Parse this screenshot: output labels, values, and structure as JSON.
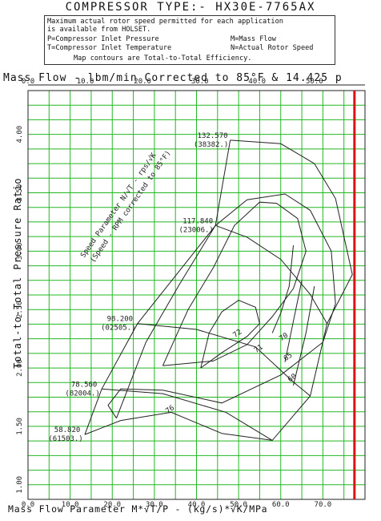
{
  "header": {
    "title": "COMPRESSOR TYPE:- HX30E-7765AX"
  },
  "info": {
    "line1": "Maximum actual rotor speed permitted for each application",
    "line2": "is available from HOLSET.",
    "p_def": "P=Compressor Inlet Pressure",
    "m_def": "M=Mass Flow",
    "t_def": "T=Compressor Inlet Temperature",
    "n_def": "N=Actual Rotor Speed",
    "line5": "Map contours are Total-to-Total Efficiency."
  },
  "chart_data": {
    "type": "line",
    "top_axis": {
      "label": "Mass Flow - lbm/min Corrected to 85°F & 14.425 p",
      "ticks": [
        "0.0",
        "10.0",
        "20.0",
        "30.0",
        "40.0",
        "50.0"
      ],
      "tick_values": [
        0,
        10,
        20,
        30,
        40,
        50
      ]
    },
    "xlabel": "Mass Flow Parameter M*√T/P - (kg/s)*√K/MPa",
    "ylabel": "Total-to-Total Pressure Ratio",
    "xlim": [
      0,
      80
    ],
    "ylim": [
      0.875,
      4.375
    ],
    "x_ticks": [
      "0.0",
      "10.0",
      "20.0",
      "30.0",
      "40.0",
      "50.0",
      "60.0",
      "70.0"
    ],
    "y_ticks": [
      "1.00",
      "1.50",
      "2.00",
      "2.50",
      "3.00",
      "3.50",
      "4.00"
    ],
    "grid": true,
    "max_flow_line_x": 77.5,
    "speed_parameter_label": {
      "line1": "Speed Parameter N/√T - rps/√K",
      "line2": "(Speed - RPM corrected to 85°F)"
    },
    "speed_lines": [
      {
        "parameter": "58.820",
        "rpm": "(61503.)",
        "points": [
          [
            13.5,
            1.43
          ],
          [
            22,
            1.55
          ],
          [
            34,
            1.62
          ],
          [
            46,
            1.44
          ]
        ]
      },
      {
        "parameter": "78.560",
        "rpm": "(82004.)",
        "points": [
          [
            17.5,
            1.82
          ],
          [
            32,
            1.78
          ],
          [
            47,
            1.62
          ],
          [
            58,
            1.38
          ]
        ]
      },
      {
        "parameter": "98.200",
        "rpm": "(02505.)",
        "points": [
          [
            26,
            2.38
          ],
          [
            40,
            2.33
          ],
          [
            54,
            2.18
          ],
          [
            63,
            1.88
          ],
          [
            67,
            1.76
          ]
        ]
      },
      {
        "parameter": "117.840",
        "rpm": "(23006.)",
        "points": [
          [
            44.5,
            3.22
          ],
          [
            52,
            3.12
          ],
          [
            60,
            2.93
          ],
          [
            67,
            2.63
          ],
          [
            71,
            2.38
          ]
        ]
      },
      {
        "parameter": "132.570",
        "rpm": "(38382.)",
        "points": [
          [
            48,
            3.95
          ],
          [
            60,
            3.92
          ],
          [
            68,
            3.75
          ],
          [
            73,
            3.45
          ],
          [
            77,
            2.8
          ]
        ]
      }
    ],
    "surge_line": [
      [
        13.5,
        1.43
      ],
      [
        17.5,
        1.82
      ],
      [
        26,
        2.38
      ],
      [
        44.5,
        3.22
      ],
      [
        48,
        3.95
      ]
    ],
    "choke_line": [
      [
        46,
        1.44
      ],
      [
        58,
        1.38
      ],
      [
        67,
        1.76
      ],
      [
        71,
        2.38
      ],
      [
        77,
        2.8
      ]
    ],
    "efficiency_contours": [
      {
        "label": "76",
        "points": [
          [
            21,
            1.57
          ],
          [
            19,
            1.68
          ],
          [
            22,
            1.82
          ],
          [
            32,
            1.81
          ],
          [
            46,
            1.7
          ],
          [
            60,
            1.94
          ],
          [
            70,
            2.22
          ],
          [
            73,
            2.55
          ],
          [
            72,
            3.0
          ],
          [
            67,
            3.35
          ],
          [
            61,
            3.49
          ],
          [
            52,
            3.44
          ],
          [
            44.5,
            3.22
          ],
          [
            36,
            2.72
          ],
          [
            28,
            2.22
          ],
          [
            21,
            1.57
          ]
        ],
        "label_point": [
          34,
          1.63
        ]
      },
      {
        "label": "71",
        "points": [
          [
            32,
            2.02
          ],
          [
            44,
            2.06
          ],
          [
            52,
            2.2
          ],
          [
            58,
            2.44
          ],
          [
            63,
            2.68
          ],
          [
            66,
            3.0
          ],
          [
            64,
            3.28
          ],
          [
            59,
            3.41
          ],
          [
            55,
            3.42
          ],
          [
            49,
            3.22
          ],
          [
            44,
            2.86
          ],
          [
            38,
            2.5
          ],
          [
            32,
            2.02
          ]
        ],
        "label_point": [
          55,
          2.15
        ]
      },
      {
        "label": "72",
        "points": [
          [
            41,
            2.0
          ],
          [
            46,
            2.13
          ],
          [
            52,
            2.27
          ],
          [
            55,
            2.38
          ],
          [
            54,
            2.52
          ],
          [
            50,
            2.58
          ],
          [
            46,
            2.48
          ],
          [
            43,
            2.3
          ],
          [
            41,
            2.0
          ]
        ],
        "label_point": [
          50,
          2.28
        ]
      },
      {
        "label": "70",
        "points": [
          [
            58,
            2.3
          ],
          [
            60,
            2.47
          ],
          [
            62,
            2.7
          ],
          [
            63,
            3.05
          ]
        ],
        "label_point": [
          61,
          2.25
        ]
      },
      {
        "label": "65",
        "points": [
          [
            61,
            2.05
          ],
          [
            63,
            2.4
          ],
          [
            65,
            2.75
          ]
        ],
        "label_point": [
          62,
          2.08
        ]
      },
      {
        "label": "60",
        "points": [
          [
            63,
            1.85
          ],
          [
            66,
            2.3
          ],
          [
            68,
            2.7
          ]
        ],
        "label_point": [
          63,
          1.9
        ]
      }
    ]
  }
}
